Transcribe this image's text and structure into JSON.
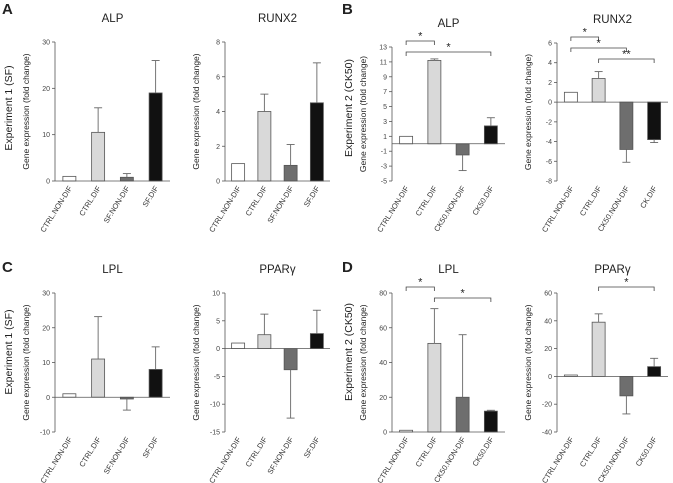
{
  "panels": [
    {
      "letter": "A",
      "experiment": "Experiment 1 (SF)"
    },
    {
      "letter": "B",
      "experiment": "Experiment 2 (CK50)"
    },
    {
      "letter": "C",
      "experiment": "Experiment 1 (SF)"
    },
    {
      "letter": "D",
      "experiment": "Experiment 2 (CK50)"
    }
  ],
  "colors": {
    "white": "#ffffff",
    "light_gray": "#d9d9d9",
    "dark_gray": "#6e6e6e",
    "black": "#111111"
  },
  "chart_data": [
    {
      "id": "A1",
      "type": "bar",
      "title": "ALP",
      "ylabel": "Gene expression (fold change)",
      "categories": [
        "CTRL.NON-DIF",
        "CTRL.DIF",
        "SF.NON-DIF",
        "SF.DIF"
      ],
      "values": [
        1,
        10.5,
        0.8,
        19
      ],
      "errors": [
        0,
        5.3,
        0.8,
        7
      ],
      "ylim": [
        0,
        30
      ],
      "ticks": [
        0,
        10,
        20,
        30
      ],
      "significance": []
    },
    {
      "id": "A2",
      "type": "bar",
      "title": "RUNX2",
      "ylabel": "Gene expression (fold change)",
      "categories": [
        "CTRL.NON-DIF",
        "CTRL.DIF",
        "SF.NON-DIF",
        "SF.DIF"
      ],
      "values": [
        1,
        4,
        0.9,
        4.5
      ],
      "errors": [
        0,
        1,
        1.2,
        2.3
      ],
      "ylim": [
        0,
        8
      ],
      "ticks": [
        0,
        2,
        4,
        6,
        8
      ],
      "significance": []
    },
    {
      "id": "B1",
      "type": "bar",
      "title": "ALP",
      "ylabel": "Gene expression (fold change)",
      "categories": [
        "CTRL.NON-DIF",
        "CTRL.DIF",
        "CK50.NON-DIF",
        "CK50.DIF"
      ],
      "values": [
        1,
        11.2,
        -1.5,
        2.4
      ],
      "errors": [
        0,
        0.2,
        2.1,
        1.1
      ],
      "ylim": [
        -5,
        13
      ],
      "ticks": [
        -5,
        -3,
        -1,
        1,
        3,
        5,
        7,
        9,
        11,
        13
      ],
      "significance": [
        {
          "from": 0,
          "to": 1,
          "label": "*"
        },
        {
          "from": 0,
          "to": 3,
          "label": "*"
        }
      ]
    },
    {
      "id": "B2",
      "type": "bar",
      "title": "RUNX2",
      "ylabel": "Gene expression (fold change)",
      "categories": [
        "CTRL.NON-DIF",
        "CTRL.DIF",
        "CK50.NON-DIF",
        "CK.DIF"
      ],
      "values": [
        1,
        2.4,
        -4.8,
        -3.8
      ],
      "errors": [
        0,
        0.7,
        1.3,
        0.3
      ],
      "ylim": [
        -8,
        6
      ],
      "ticks": [
        -8,
        -6,
        -4,
        -2,
        0,
        2,
        4,
        6
      ],
      "significance": [
        {
          "from": 0,
          "to": 1,
          "label": "*"
        },
        {
          "from": 0,
          "to": 2,
          "label": "*"
        },
        {
          "from": 1,
          "to": 3,
          "label": "**"
        }
      ]
    },
    {
      "id": "C1",
      "type": "bar",
      "title": "LPL",
      "ylabel": "Gene expression (fold change)",
      "categories": [
        "CTRL.NON-DIF",
        "CTRL.DIF",
        "SF.NON-DIF",
        "SF.DIF"
      ],
      "values": [
        1,
        11,
        -0.5,
        8
      ],
      "errors": [
        0,
        12.2,
        3.2,
        6.5
      ],
      "ylim": [
        -10,
        30
      ],
      "ticks": [
        -10,
        0,
        10,
        20,
        30
      ],
      "significance": []
    },
    {
      "id": "C2",
      "type": "bar",
      "title": "PPARγ",
      "ylabel": "Gene expression (fold change)",
      "categories": [
        "CTRL.NON-DIF",
        "CTRL.DIF",
        "SF.NON-DIF",
        "SF.DIF"
      ],
      "values": [
        1,
        2.5,
        -3.8,
        2.7
      ],
      "errors": [
        0,
        3.7,
        8.7,
        4.2
      ],
      "ylim": [
        -15,
        10
      ],
      "ticks": [
        -15,
        -10,
        -5,
        0,
        5,
        10
      ],
      "significance": []
    },
    {
      "id": "D1",
      "type": "bar",
      "title": "LPL",
      "ylabel": "Gene expression (fold change)",
      "categories": [
        "CTRL.NON-DIF",
        "CTRL.DIF",
        "CK50.NON-DIF",
        "CK50.DIF"
      ],
      "values": [
        1,
        51,
        20,
        12
      ],
      "errors": [
        0,
        20,
        36,
        0.5
      ],
      "ylim": [
        0,
        80
      ],
      "ticks": [
        0,
        20,
        40,
        60,
        80
      ],
      "significance": [
        {
          "from": 0,
          "to": 1,
          "label": "*"
        },
        {
          "from": 1,
          "to": 3,
          "label": "*"
        }
      ]
    },
    {
      "id": "D2",
      "type": "bar",
      "title": "PPARγ",
      "ylabel": "Gene expression (fold change)",
      "categories": [
        "CTRL.NON-DIF",
        "CTRL.DIF",
        "CK50.NON-DIF",
        "CK50.DIF"
      ],
      "values": [
        1,
        39,
        -14,
        7
      ],
      "errors": [
        0,
        6,
        13,
        6
      ],
      "ylim": [
        -40,
        60
      ],
      "ticks": [
        -40,
        -20,
        0,
        20,
        40,
        60
      ],
      "significance": [
        {
          "from": 1,
          "to": 3,
          "label": "*"
        }
      ]
    }
  ]
}
